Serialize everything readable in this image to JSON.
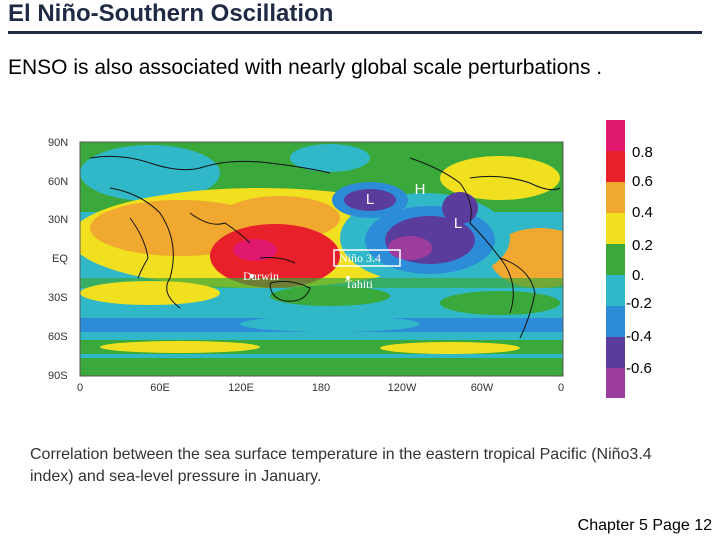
{
  "slide": {
    "title": "El Niño-Southern Oscillation",
    "subtitle": "ENSO is also associated with nearly global scale perturbations .",
    "caption": "Correlation between the sea surface temperature in the eastern tropical Pacific (Niño3.4 index) and sea-level pressure in January.",
    "footer": "Chapter 5 Page 12"
  },
  "map": {
    "lat_labels": [
      "90N",
      "60N",
      "30N",
      "EQ",
      "30S",
      "60S",
      "90S"
    ],
    "lon_labels": [
      "0",
      "60E",
      "120E",
      "180",
      "120W",
      "60W",
      "0"
    ],
    "annotations": {
      "low_north_pacific": "L",
      "high_arctic": "H",
      "low_east_pacific": "L",
      "nino_box": "Niño 3.4",
      "darwin": "Darwin",
      "tahiti": "Tahiti"
    }
  },
  "colorbar": {
    "labels": [
      "0.8",
      "0.6",
      "0.4",
      "0.2",
      "0.",
      "-0.2",
      "-0.4",
      "-0.6"
    ],
    "colors": [
      "#e0186e",
      "#e8202a",
      "#f0a830",
      "#f0e020",
      "#3aa83a",
      "#30b8c8",
      "#2c8cd8",
      "#5a3c9c",
      "#9c3c9c"
    ]
  }
}
